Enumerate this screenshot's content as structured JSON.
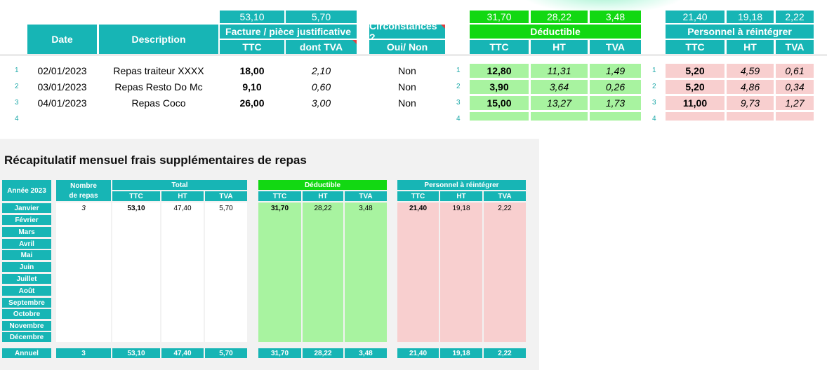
{
  "top_totals": {
    "facture": [
      "53,10",
      "5,70"
    ],
    "deductible": [
      "31,70",
      "28,22",
      "3,48"
    ],
    "personnel": [
      "21,40",
      "19,18",
      "2,22"
    ]
  },
  "headers": {
    "date": "Date",
    "description": "Description",
    "facture": "Facture / pièce justificative",
    "ttc": "TTC",
    "dont_tva": "dont TVA",
    "circ1": "Circonstances ?",
    "circ2": "Oui/ Non",
    "deductible": "Déductible",
    "ht": "HT",
    "tva": "TVA",
    "personnel": "Personnel à réintégrer"
  },
  "rows": [
    {
      "num": "1",
      "date": "02/01/2023",
      "desc": "Repas traiteur XXXX",
      "ttc": "18,00",
      "tva": "2,10",
      "circ": "Non",
      "d_ttc": "12,80",
      "d_ht": "11,31",
      "d_tva": "1,49",
      "p_ttc": "5,20",
      "p_ht": "4,59",
      "p_tva": "0,61"
    },
    {
      "num": "2",
      "date": "03/01/2023",
      "desc": "Repas Resto Do Mc",
      "ttc": "9,10",
      "tva": "0,60",
      "circ": "Non",
      "d_ttc": "3,90",
      "d_ht": "3,64",
      "d_tva": "0,26",
      "p_ttc": "5,20",
      "p_ht": "4,86",
      "p_tva": "0,34"
    },
    {
      "num": "3",
      "date": "04/01/2023",
      "desc": "Repas Coco",
      "ttc": "26,00",
      "tva": "3,00",
      "circ": "Non",
      "d_ttc": "15,00",
      "d_ht": "13,27",
      "d_tva": "1,73",
      "p_ttc": "11,00",
      "p_ht": "9,73",
      "p_tva": "1,27"
    },
    {
      "num": "4"
    }
  ],
  "recap": {
    "title": "Récapitulatif mensuel frais supplémentaires de repas",
    "annee": "Année 2023",
    "nombre1": "Nombre",
    "nombre2": "de repas",
    "total": "Total",
    "deductible": "Déductible",
    "personnel": "Personnel à réintégrer",
    "ttc": "TTC",
    "ht": "HT",
    "tva": "TVA",
    "months": [
      "Janvier",
      "Février",
      "Mars",
      "Avril",
      "Mai",
      "Juin",
      "Juillet",
      "Août",
      "Septembre",
      "Octobre",
      "Novembre",
      "Décembre"
    ],
    "janvier": {
      "n": "3",
      "t_ttc": "53,10",
      "t_ht": "47,40",
      "t_tva": "5,70",
      "d_ttc": "31,70",
      "d_ht": "28,22",
      "d_tva": "3,48",
      "p_ttc": "21,40",
      "p_ht": "19,18",
      "p_tva": "2,22"
    },
    "annuel": {
      "label": "Annuel",
      "n": "3",
      "t_ttc": "53,10",
      "t_ht": "47,40",
      "t_tva": "5,70",
      "d_ttc": "31,70",
      "d_ht": "28,22",
      "d_tva": "3,48",
      "p_ttc": "21,40",
      "p_ht": "19,18",
      "p_tva": "2,22"
    }
  }
}
